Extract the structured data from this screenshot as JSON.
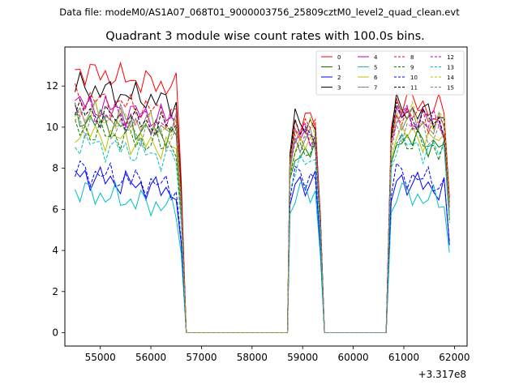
{
  "page": {
    "suptitle": "Data file: modeM0/AS1A07_068T01_9000003756_25809cztM0_level2_quad_clean.evt",
    "title": "Quadrant 3 module wise count rates with 100.0s bins.",
    "offset_label": "+3.317e8"
  },
  "colors": [
    "#ff0000",
    "#008000",
    "#0000ff",
    "#000000",
    "#bf00bf",
    "#00bfbf",
    "#bfbf00",
    "#808080"
  ],
  "chart_data": {
    "type": "line",
    "title": "Quadrant 3 module wise count rates with 100.0s bins.",
    "xlabel": "",
    "ylabel": "",
    "x_offset": 331700000,
    "xlim": [
      54300,
      62250
    ],
    "ylim": [
      -0.65,
      13.9
    ],
    "xticks": [
      55000,
      56000,
      57000,
      58000,
      59000,
      60000,
      61000,
      62000
    ],
    "xtick_labels": [
      "55000",
      "56000",
      "57000",
      "58000",
      "59000",
      "60000",
      "61000",
      "62000"
    ],
    "yticks": [
      0,
      2,
      4,
      6,
      8,
      10,
      12
    ],
    "ytick_labels": [
      "0",
      "2",
      "4",
      "6",
      "8",
      "10",
      "12"
    ],
    "segments": [
      {
        "start": 54500,
        "end": 56600,
        "n": 22
      },
      {
        "start": 58750,
        "end": 59350,
        "n": 7
      },
      {
        "start": 60750,
        "end": 61900,
        "n": 12
      }
    ],
    "zero_start": 56700,
    "zero_end": 60650,
    "legend": {
      "placement": "top-right",
      "columns": 4
    },
    "series": [
      {
        "name": "0",
        "color": "#ff0000",
        "dash": false,
        "levels": [
          12.3,
          10.3,
          11.0
        ]
      },
      {
        "name": "1",
        "color": "#008000",
        "dash": false,
        "levels": [
          10.0,
          8.8,
          9.2
        ]
      },
      {
        "name": "2",
        "color": "#0000ff",
        "dash": false,
        "levels": [
          7.2,
          7.3,
          7.1
        ]
      },
      {
        "name": "3",
        "color": "#000000",
        "dash": false,
        "levels": [
          11.5,
          10.2,
          10.6
        ]
      },
      {
        "name": "4",
        "color": "#bf00bf",
        "dash": false,
        "levels": [
          10.7,
          9.5,
          10.3
        ]
      },
      {
        "name": "5",
        "color": "#00bfbf",
        "dash": false,
        "levels": [
          6.4,
          6.8,
          6.5
        ]
      },
      {
        "name": "6",
        "color": "#bfbf00",
        "dash": false,
        "levels": [
          9.3,
          9.1,
          9.4
        ]
      },
      {
        "name": "7",
        "color": "#808080",
        "dash": false,
        "levels": [
          10.3,
          9.3,
          10.1
        ]
      },
      {
        "name": "8",
        "color": "#ff0000",
        "dash": true,
        "levels": [
          11.0,
          10.1,
          10.4
        ]
      },
      {
        "name": "9",
        "color": "#008000",
        "dash": true,
        "levels": [
          9.4,
          9.0,
          9.1
        ]
      },
      {
        "name": "10",
        "color": "#0000ff",
        "dash": true,
        "levels": [
          7.4,
          7.6,
          7.4
        ]
      },
      {
        "name": "11",
        "color": "#000000",
        "dash": true,
        "levels": [
          10.3,
          9.8,
          10.3
        ]
      },
      {
        "name": "12",
        "color": "#bf00bf",
        "dash": true,
        "levels": [
          10.4,
          9.6,
          10.2
        ]
      },
      {
        "name": "13",
        "color": "#00bfbf",
        "dash": true,
        "levels": [
          8.8,
          8.2,
          8.9
        ]
      },
      {
        "name": "14",
        "color": "#bfbf00",
        "dash": true,
        "levels": [
          10.2,
          9.7,
          10.3
        ]
      },
      {
        "name": "15",
        "color": "#808080",
        "dash": true,
        "levels": [
          9.8,
          9.5,
          9.7
        ]
      }
    ]
  }
}
